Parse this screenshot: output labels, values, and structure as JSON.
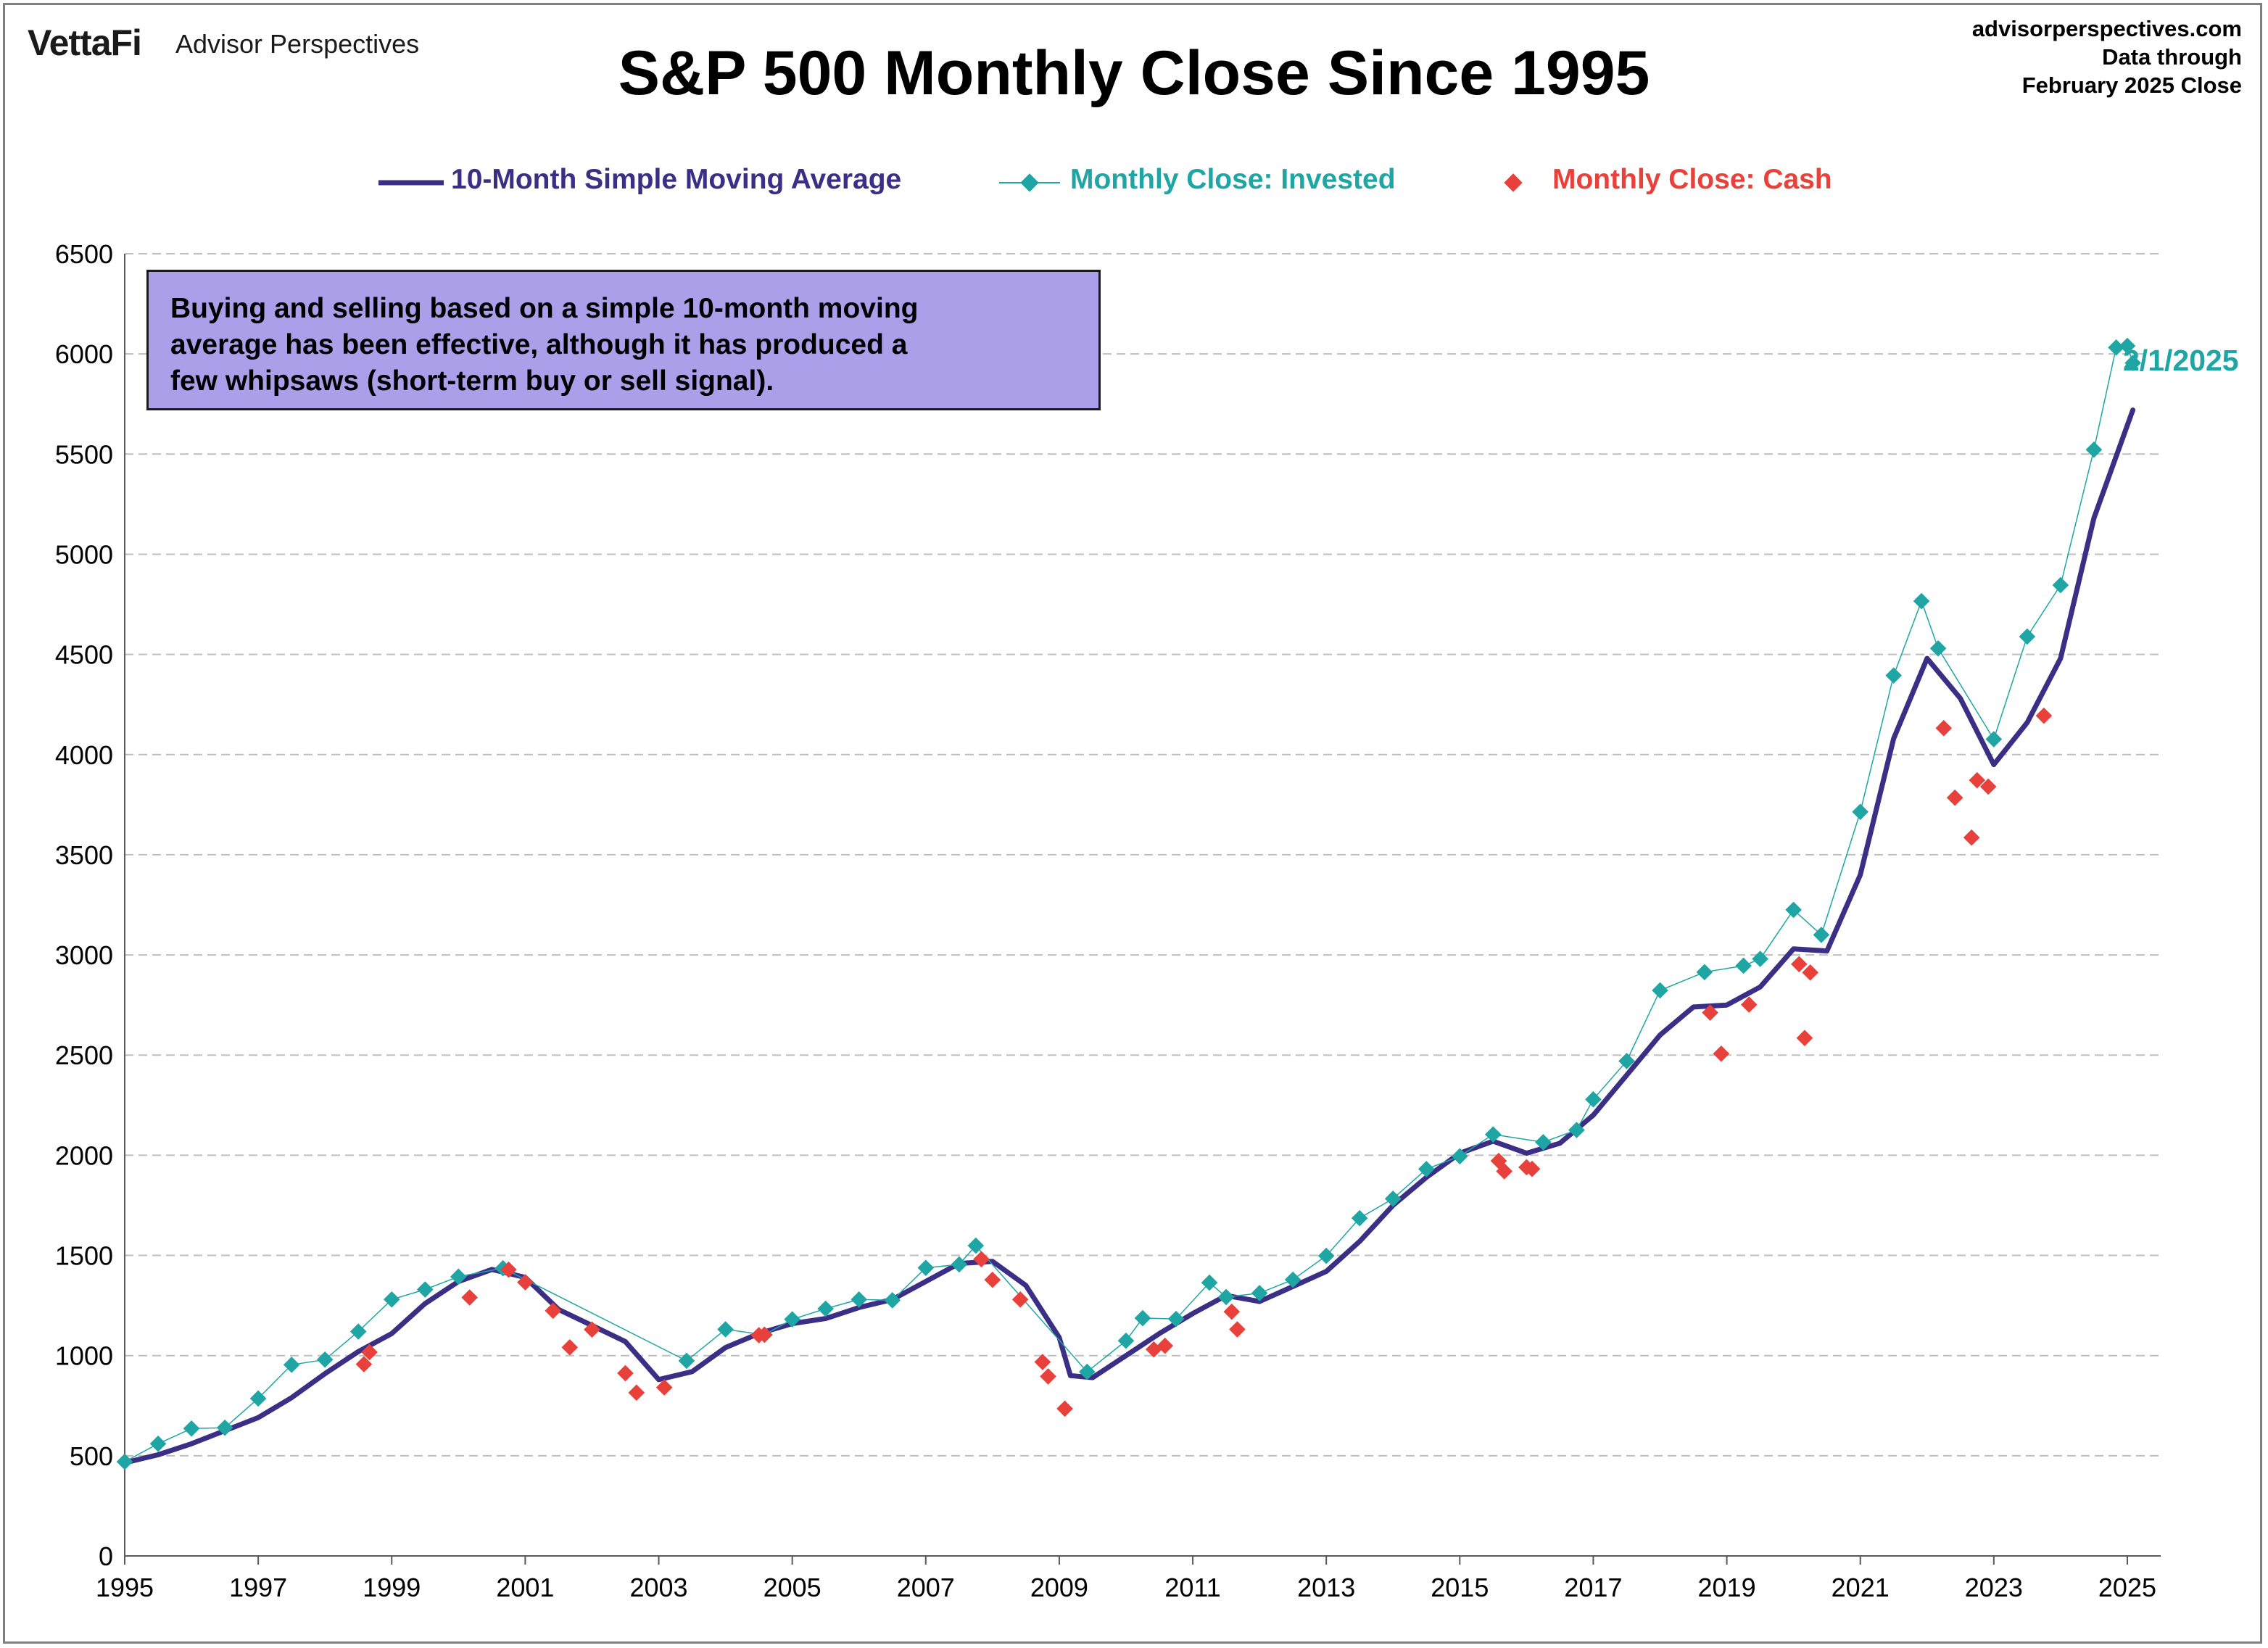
{
  "header": {
    "brand": "VettaFi",
    "brand_sub": "Advisor Perspectives",
    "source_lines": [
      "advisorperspectives.com",
      "Data through",
      "February 2025 Close"
    ]
  },
  "legend": {
    "placement": "top-center",
    "items": [
      {
        "label": "10-Month Simple Moving Average",
        "color": "#3b2f85"
      },
      {
        "label": "Monthly Close: Invested",
        "color": "#20a5a5"
      },
      {
        "label": "Monthly Close: Cash",
        "color": "#e8403b"
      }
    ]
  },
  "annotation": {
    "lines": [
      "Buying and selling based on a simple 10-month moving",
      "average has been effective, although it has produced a",
      "few whipsaws (short-term buy or sell signal)."
    ]
  },
  "end_label": "2/1/2025",
  "colors": {
    "sma": "#3b2f85",
    "invested": "#20a5a5",
    "cash": "#e8403b",
    "annotation_bg": "#ab9fe9",
    "grid": "#bfbfbf"
  },
  "chart_data": {
    "type": "line",
    "title": "S&P 500 Monthly Close Since 1995",
    "xlabel": "",
    "ylabel": "",
    "xlim": [
      1995,
      2025.5
    ],
    "ylim": [
      0,
      6500
    ],
    "grid": true,
    "x_ticks": [
      "1995",
      "1997",
      "1999",
      "2001",
      "2003",
      "2005",
      "2007",
      "2009",
      "2011",
      "2013",
      "2015",
      "2017",
      "2019",
      "2021",
      "2023",
      "2025"
    ],
    "y_ticks": [
      0,
      500,
      1000,
      1500,
      2000,
      2500,
      3000,
      3500,
      4000,
      4500,
      5000,
      5500,
      6000,
      6500
    ],
    "series": [
      {
        "name": "10-Month Simple Moving Average",
        "style": "line",
        "points": [
          [
            "1995-01",
            465
          ],
          [
            "1995-07",
            505
          ],
          [
            "1996-01",
            560
          ],
          [
            "1996-07",
            625
          ],
          [
            "1997-01",
            690
          ],
          [
            "1997-07",
            790
          ],
          [
            "1998-01",
            910
          ],
          [
            "1998-07",
            1020
          ],
          [
            "1999-01",
            1110
          ],
          [
            "1999-07",
            1260
          ],
          [
            "2000-01",
            1370
          ],
          [
            "2000-07",
            1430
          ],
          [
            "2001-01",
            1390
          ],
          [
            "2001-07",
            1230
          ],
          [
            "2002-01",
            1150
          ],
          [
            "2002-07",
            1070
          ],
          [
            "2003-01",
            880
          ],
          [
            "2003-07",
            920
          ],
          [
            "2004-01",
            1040
          ],
          [
            "2004-07",
            1110
          ],
          [
            "2005-01",
            1160
          ],
          [
            "2005-07",
            1185
          ],
          [
            "2006-01",
            1240
          ],
          [
            "2006-07",
            1280
          ],
          [
            "2007-01",
            1370
          ],
          [
            "2007-07",
            1460
          ],
          [
            "2008-01",
            1470
          ],
          [
            "2008-07",
            1350
          ],
          [
            "2009-01",
            1090
          ],
          [
            "2009-03",
            900
          ],
          [
            "2009-07",
            890
          ],
          [
            "2010-01",
            1000
          ],
          [
            "2010-07",
            1110
          ],
          [
            "2011-01",
            1210
          ],
          [
            "2011-07",
            1300
          ],
          [
            "2012-01",
            1270
          ],
          [
            "2012-07",
            1345
          ],
          [
            "2013-01",
            1420
          ],
          [
            "2013-07",
            1570
          ],
          [
            "2014-01",
            1750
          ],
          [
            "2014-07",
            1890
          ],
          [
            "2015-01",
            2010
          ],
          [
            "2015-07",
            2070
          ],
          [
            "2016-01",
            2010
          ],
          [
            "2016-07",
            2060
          ],
          [
            "2017-01",
            2200
          ],
          [
            "2017-07",
            2400
          ],
          [
            "2018-01",
            2600
          ],
          [
            "2018-07",
            2740
          ],
          [
            "2019-01",
            2750
          ],
          [
            "2019-07",
            2840
          ],
          [
            "2020-01",
            3030
          ],
          [
            "2020-07",
            3020
          ],
          [
            "2021-01",
            3400
          ],
          [
            "2021-07",
            4080
          ],
          [
            "2022-01",
            4480
          ],
          [
            "2022-07",
            4280
          ],
          [
            "2023-01",
            3950
          ],
          [
            "2023-07",
            4160
          ],
          [
            "2024-01",
            4480
          ],
          [
            "2024-07",
            5180
          ],
          [
            "2025-02",
            5720
          ]
        ]
      },
      {
        "name": "Monthly Close: Invested",
        "style": "markers-connected",
        "points": [
          [
            "1995-01",
            470
          ],
          [
            "1995-07",
            560
          ],
          [
            "1996-01",
            636
          ],
          [
            "1996-07",
            640
          ],
          [
            "1997-01",
            786
          ],
          [
            "1997-07",
            954
          ],
          [
            "1998-01",
            980
          ],
          [
            "1998-07",
            1120
          ],
          [
            "1999-01",
            1280
          ],
          [
            "1999-07",
            1330
          ],
          [
            "2000-01",
            1394
          ],
          [
            "2000-09",
            1436
          ],
          [
            "2003-06",
            974
          ],
          [
            "2004-01",
            1131
          ],
          [
            "2004-08",
            1104
          ],
          [
            "2005-01",
            1181
          ],
          [
            "2005-07",
            1234
          ],
          [
            "2006-01",
            1280
          ],
          [
            "2006-07",
            1276
          ],
          [
            "2007-01",
            1438
          ],
          [
            "2007-07",
            1455
          ],
          [
            "2007-10",
            1549
          ],
          [
            "2009-06",
            919
          ],
          [
            "2010-01",
            1074
          ],
          [
            "2010-04",
            1187
          ],
          [
            "2010-10",
            1183
          ],
          [
            "2011-04",
            1364
          ],
          [
            "2011-07",
            1292
          ],
          [
            "2012-01",
            1312
          ],
          [
            "2012-07",
            1379
          ],
          [
            "2013-01",
            1498
          ],
          [
            "2013-07",
            1686
          ],
          [
            "2014-01",
            1783
          ],
          [
            "2014-07",
            1931
          ],
          [
            "2015-01",
            1995
          ],
          [
            "2015-07",
            2104
          ],
          [
            "2016-04",
            2065
          ],
          [
            "2016-10",
            2126
          ],
          [
            "2017-01",
            2279
          ],
          [
            "2017-07",
            2470
          ],
          [
            "2018-01",
            2823
          ],
          [
            "2018-09",
            2914
          ],
          [
            "2019-04",
            2946
          ],
          [
            "2019-07",
            2980
          ],
          [
            "2020-01",
            3225
          ],
          [
            "2020-06",
            3100
          ],
          [
            "2021-01",
            3714
          ],
          [
            "2021-07",
            4395
          ],
          [
            "2021-12",
            4766
          ],
          [
            "2022-03",
            4530
          ],
          [
            "2023-01",
            4077
          ],
          [
            "2023-07",
            4589
          ],
          [
            "2024-01",
            4846
          ],
          [
            "2024-07",
            5522
          ],
          [
            "2024-11",
            6032
          ],
          [
            "2025-01",
            6040
          ],
          [
            "2025-02",
            5955
          ]
        ]
      },
      {
        "name": "Monthly Close: Cash",
        "style": "markers",
        "points": [
          [
            "1998-08",
            957
          ],
          [
            "1998-09",
            1017
          ],
          [
            "2000-03",
            1290
          ],
          [
            "2000-10",
            1429
          ],
          [
            "2001-01",
            1366
          ],
          [
            "2001-06",
            1224
          ],
          [
            "2001-09",
            1041
          ],
          [
            "2002-01",
            1130
          ],
          [
            "2002-07",
            912
          ],
          [
            "2002-09",
            815
          ],
          [
            "2003-02",
            841
          ],
          [
            "2004-07",
            1102
          ],
          [
            "2004-08",
            1104
          ],
          [
            "2007-11",
            1481
          ],
          [
            "2008-01",
            1378
          ],
          [
            "2008-06",
            1280
          ],
          [
            "2008-10",
            968
          ],
          [
            "2008-11",
            896
          ],
          [
            "2009-02",
            735
          ],
          [
            "2010-06",
            1031
          ],
          [
            "2010-08",
            1049
          ],
          [
            "2011-08",
            1219
          ],
          [
            "2011-09",
            1131
          ],
          [
            "2015-08",
            1972
          ],
          [
            "2015-09",
            1920
          ],
          [
            "2016-01",
            1940
          ],
          [
            "2016-02",
            1932
          ],
          [
            "2018-10",
            2712
          ],
          [
            "2018-12",
            2507
          ],
          [
            "2019-05",
            2752
          ],
          [
            "2020-02",
            2954
          ],
          [
            "2020-03",
            2585
          ],
          [
            "2020-04",
            2912
          ],
          [
            "2022-04",
            4132
          ],
          [
            "2022-06",
            3785
          ],
          [
            "2022-09",
            3586
          ],
          [
            "2022-10",
            3872
          ],
          [
            "2022-12",
            3840
          ],
          [
            "2023-10",
            4194
          ]
        ]
      }
    ]
  }
}
